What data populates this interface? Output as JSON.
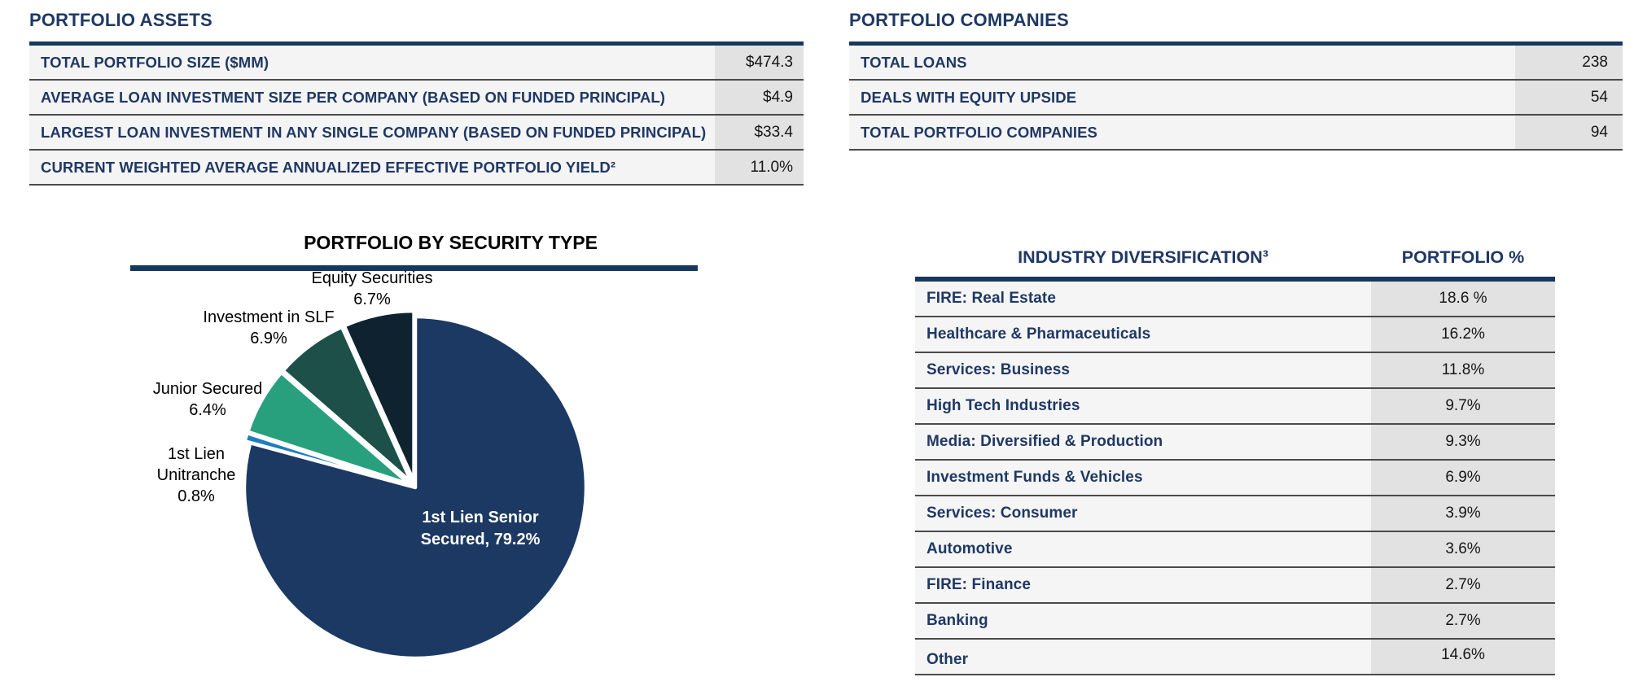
{
  "assets_table": {
    "title": "PORTFOLIO ASSETS",
    "rows": [
      {
        "label": "TOTAL PORTFOLIO SIZE ($MM)",
        "value": "$474.3"
      },
      {
        "label": "AVERAGE LOAN INVESTMENT SIZE PER COMPANY (BASED ON FUNDED PRINCIPAL)",
        "value": "$4.9"
      },
      {
        "label": "LARGEST LOAN INVESTMENT IN ANY SINGLE COMPANY (BASED ON FUNDED PRINCIPAL)",
        "value": "$33.4"
      },
      {
        "label": "CURRENT WEIGHTED AVERAGE ANNUALIZED EFFECTIVE PORTFOLIO YIELD²",
        "value": "11.0%"
      }
    ]
  },
  "companies_table": {
    "title": "PORTFOLIO COMPANIES",
    "rows": [
      {
        "label": "TOTAL LOANS",
        "value": "238"
      },
      {
        "label": "DEALS WITH EQUITY UPSIDE",
        "value": "54"
      },
      {
        "label": "TOTAL PORTFOLIO COMPANIES",
        "value": "94"
      }
    ]
  },
  "chart_data": {
    "type": "pie",
    "title": "PORTFOLIO BY SECURITY TYPE",
    "start_angle_deg": 0,
    "direction": "clockwise",
    "legend": "none",
    "slices": [
      {
        "label": "1st Lien Senior Secured",
        "value": 79.2,
        "color": "#1B3963",
        "label_position": "inside"
      },
      {
        "label": "1st Lien Unitranche",
        "value": 0.8,
        "color": "#1E7CBF",
        "label_position": "outside"
      },
      {
        "label": "Junior Secured",
        "value": 6.4,
        "color": "#28A07E",
        "label_position": "outside"
      },
      {
        "label": "Investment in SLF",
        "value": 6.9,
        "color": "#1D5048",
        "label_position": "outside"
      },
      {
        "label": "Equity Securities",
        "value": 6.7,
        "color": "#0F2230",
        "label_position": "outside"
      }
    ]
  },
  "industry_table": {
    "title": "INDUSTRY DIVERSIFICATION³",
    "value_header": "PORTFOLIO %",
    "rows": [
      {
        "label": "FIRE: Real Estate",
        "value": "18.6 %"
      },
      {
        "label": "Healthcare & Pharmaceuticals",
        "value": "16.2%"
      },
      {
        "label": "Services: Business",
        "value": "11.8%"
      },
      {
        "label": "High Tech Industries",
        "value": "9.7%"
      },
      {
        "label": "Media: Diversified & Production",
        "value": "9.3%"
      },
      {
        "label": "Investment Funds & Vehicles",
        "value": "6.9%"
      },
      {
        "label": "Services: Consumer",
        "value": "3.9%"
      },
      {
        "label": "Automotive",
        "value": "3.6%"
      },
      {
        "label": "FIRE: Finance",
        "value": "2.7%"
      },
      {
        "label": "Banking",
        "value": "2.7%"
      },
      {
        "label": "Other",
        "value": "14.6%"
      }
    ]
  },
  "colors": {
    "heading_navy": "#1F3864",
    "bar_navy": "#17375E",
    "label_cell_bg": "#f4f4f4",
    "value_cell_bg": "#e2e2e2",
    "separator": "#4a4a4a"
  }
}
